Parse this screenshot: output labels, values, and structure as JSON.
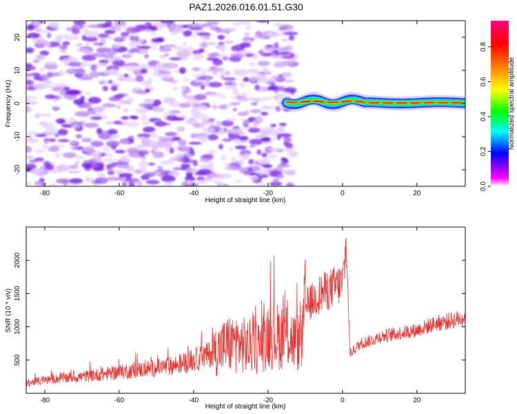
{
  "title": "PAZ1.2026.016.01.51.G30",
  "colors": {
    "axis": "#000000",
    "snr_line": "#e8302e",
    "noise": "#8a2be2",
    "colormap": [
      "#ffffff",
      "#ff00ff",
      "#7a00ff",
      "#0000ff",
      "#00ffff",
      "#00ff00",
      "#ffff00",
      "#ff8000",
      "#ff0000",
      "#ff0080"
    ]
  },
  "chart_data": [
    {
      "type": "heatmap",
      "xlabel": "Height of straight line (km)",
      "ylabel": "Frequency (Hz)",
      "xlim": [
        -85,
        33
      ],
      "ylim": [
        -25,
        25
      ],
      "xticks": [
        -80,
        -60,
        -40,
        -20,
        0,
        20
      ],
      "yticks": [
        -20,
        -10,
        0,
        10,
        20
      ],
      "noise_region": {
        "x_range": [
          -85,
          -15
        ],
        "y_range": [
          -25,
          25
        ]
      },
      "signal_band": {
        "x_range": [
          -15,
          33
        ],
        "center_freq": 0.5,
        "peak_amplitude": 0.9
      },
      "colorbar": {
        "label": "Normalized spectral amplitude",
        "range": [
          0,
          0.95
        ],
        "ticks": [
          0.0,
          0.2,
          0.4,
          0.6,
          0.8
        ]
      }
    },
    {
      "type": "line",
      "xlabel": "Height of straight line (km)",
      "ylabel": "SNR (10 * v/v)",
      "xlim": [
        -85,
        33
      ],
      "ylim": [
        0,
        2500
      ],
      "xticks": [
        -80,
        -60,
        -40,
        -20,
        0,
        20
      ],
      "yticks": [
        500,
        1000,
        1500,
        2000
      ],
      "series": [
        {
          "name": "SNR",
          "x": [
            -85,
            -80,
            -75,
            -70,
            -65,
            -60,
            -55,
            -50,
            -45,
            -40,
            -35,
            -32,
            -30,
            -28,
            -25,
            -22,
            -20,
            -17,
            -15,
            -13,
            -11,
            -10,
            -8,
            -6,
            -4,
            -2,
            0,
            1,
            1.5,
            2,
            3,
            5,
            8,
            10,
            15,
            20,
            25,
            30,
            33
          ],
          "values": [
            150,
            200,
            230,
            250,
            280,
            320,
            350,
            380,
            420,
            500,
            600,
            700,
            750,
            750,
            700,
            720,
            900,
            850,
            900,
            780,
            750,
            1300,
            1400,
            1500,
            1550,
            1600,
            1650,
            2200,
            1500,
            600,
            650,
            750,
            800,
            850,
            900,
            950,
            1050,
            1100,
            1150
          ]
        }
      ]
    }
  ]
}
